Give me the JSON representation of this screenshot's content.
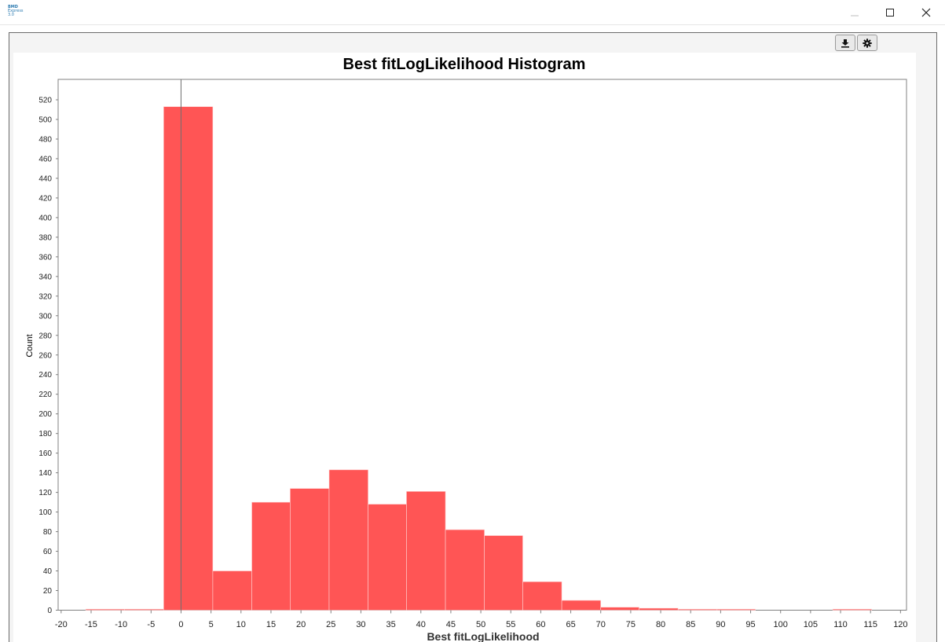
{
  "window": {
    "app_icon_text": [
      "BMD",
      "Express",
      "3.0"
    ],
    "controls": [
      "minimize-icon",
      "maximize-icon",
      "close-icon"
    ]
  },
  "toolbar": {
    "buttons": [
      "download-icon",
      "gear-icon"
    ]
  },
  "colors": {
    "bar": "#ff5555",
    "bar_edge": "#ffd2d2",
    "frame": "#808080"
  },
  "chart_data": {
    "type": "bar",
    "title": "Best fitLogLikelihood Histogram",
    "xlabel": "Best fitLogLikelihood",
    "ylabel": "Count",
    "xlim": [
      -20.5,
      121
    ],
    "ylim": [
      0,
      540
    ],
    "x_ticks": [
      -20,
      -15,
      -10,
      -5,
      0,
      5,
      10,
      15,
      20,
      25,
      30,
      35,
      40,
      45,
      50,
      55,
      60,
      65,
      70,
      75,
      80,
      85,
      90,
      95,
      100,
      105,
      110,
      115,
      120
    ],
    "y_ticks": [
      0,
      20,
      40,
      60,
      80,
      100,
      120,
      140,
      160,
      180,
      200,
      220,
      240,
      260,
      280,
      300,
      320,
      340,
      360,
      380,
      400,
      420,
      440,
      460,
      480,
      500,
      520
    ],
    "bins": [
      {
        "from": -15.9,
        "to": -9.4,
        "value": 1
      },
      {
        "from": -9.4,
        "to": -2.9,
        "value": 1
      },
      {
        "from": -2.9,
        "to": 5.3,
        "value": 513
      },
      {
        "from": 5.3,
        "to": 11.8,
        "value": 40
      },
      {
        "from": 11.8,
        "to": 18.2,
        "value": 110
      },
      {
        "from": 18.2,
        "to": 24.7,
        "value": 124
      },
      {
        "from": 24.7,
        "to": 31.2,
        "value": 143
      },
      {
        "from": 31.2,
        "to": 37.6,
        "value": 108
      },
      {
        "from": 37.6,
        "to": 44.1,
        "value": 121
      },
      {
        "from": 44.1,
        "to": 50.6,
        "value": 82
      },
      {
        "from": 50.6,
        "to": 57.0,
        "value": 76
      },
      {
        "from": 57.0,
        "to": 63.5,
        "value": 29
      },
      {
        "from": 63.5,
        "to": 70.0,
        "value": 10
      },
      {
        "from": 70.0,
        "to": 76.4,
        "value": 3
      },
      {
        "from": 76.4,
        "to": 82.9,
        "value": 2
      },
      {
        "from": 82.9,
        "to": 89.4,
        "value": 1
      },
      {
        "from": 89.4,
        "to": 95.8,
        "value": 1
      },
      {
        "from": 108.7,
        "to": 115.2,
        "value": 1
      }
    ],
    "reference_line_x": 0,
    "grid": false,
    "legend": "none"
  }
}
